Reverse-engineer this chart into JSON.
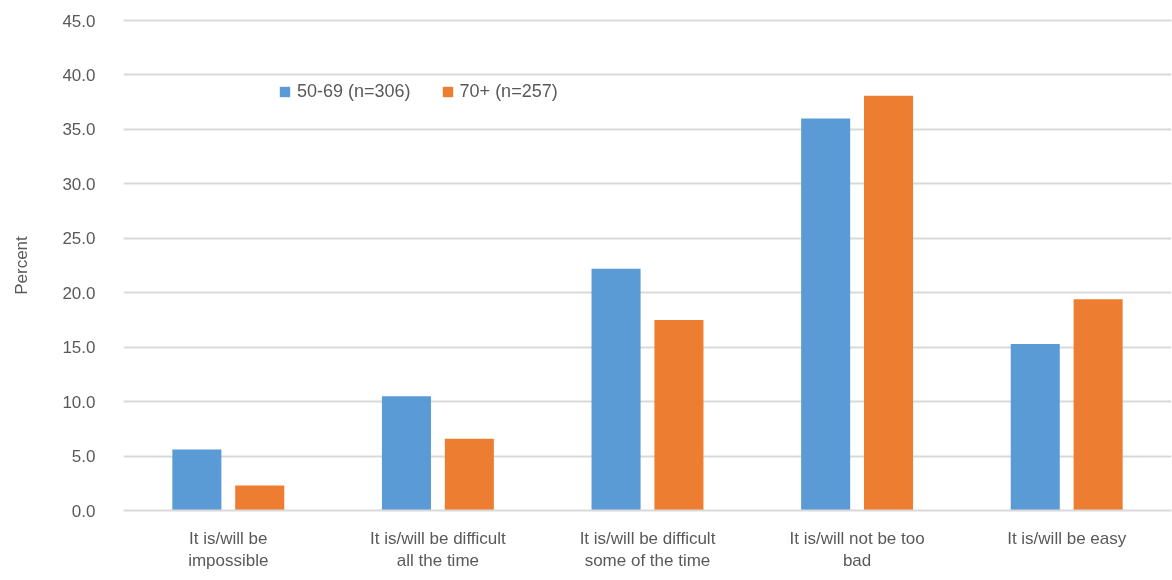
{
  "chart_data": {
    "type": "bar",
    "ylabel": "Percent",
    "categories": [
      "It is/will be impossible",
      "It is/will be difficult all the time",
      "It is/will be difficult some of the time",
      "It is/will not be too bad",
      "It is/will be easy"
    ],
    "series": [
      {
        "name": "50-69 (n=306)",
        "color": "#5b9bd5",
        "values": [
          5.6,
          10.5,
          22.2,
          36.0,
          15.3
        ]
      },
      {
        "name": "70+ (n=257)",
        "color": "#ed7d31",
        "values": [
          2.3,
          6.6,
          17.5,
          38.1,
          19.4
        ]
      }
    ],
    "ylim": [
      0,
      45
    ],
    "yticks": [
      {
        "value": 0,
        "label": "0.0"
      },
      {
        "value": 5,
        "label": "5.0"
      },
      {
        "value": 10,
        "label": "10.0"
      },
      {
        "value": 15,
        "label": "15.0"
      },
      {
        "value": 20,
        "label": "20.0"
      },
      {
        "value": 25,
        "label": "25.0"
      },
      {
        "value": 30,
        "label": "30.0"
      },
      {
        "value": 35,
        "label": "35.0"
      },
      {
        "value": 40,
        "label": "40.0"
      },
      {
        "value": 45,
        "label": "45.0"
      }
    ],
    "grid": "y",
    "legend": "top left"
  }
}
